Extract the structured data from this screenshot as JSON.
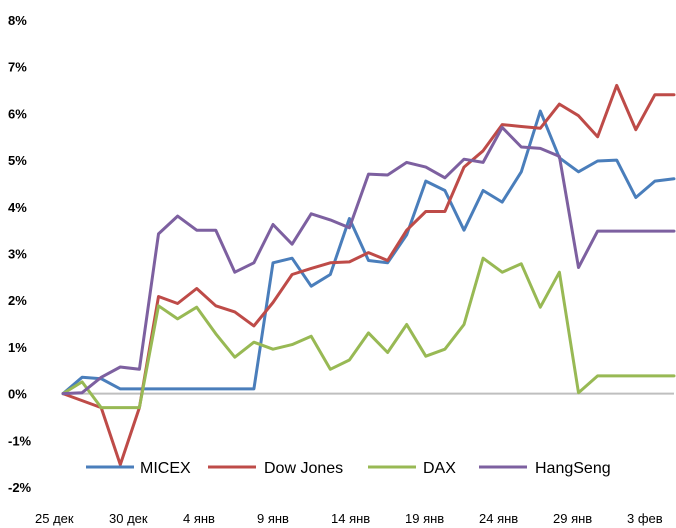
{
  "chart_data": {
    "type": "line",
    "title": "",
    "xlabel": "",
    "ylabel": "",
    "ylim": [
      -2,
      8
    ],
    "y_ticks": [
      "8%",
      "7%",
      "6%",
      "5%",
      "4%",
      "3%",
      "2%",
      "1%",
      "0%",
      "-1%",
      "-2%"
    ],
    "x_tick_labels": [
      "25 дек",
      "30 дек",
      "4 янв",
      "9 янв",
      "14 янв",
      "19 янв",
      "24 янв",
      "29 янв",
      "3 фев"
    ],
    "grid": false,
    "legend_position": "bottom",
    "x": [
      "25 дек",
      "26 дек",
      "27 дек",
      "28 дек",
      "29 дек",
      "1 янв",
      "2 янв",
      "3 янв",
      "4 янв",
      "5 янв",
      "8 янв",
      "9 янв",
      "10 янв",
      "11 янв",
      "12 янв",
      "15 янв",
      "16 янв",
      "17 янв",
      "18 янв",
      "19 янв",
      "22 янв",
      "23 янв",
      "24 янв",
      "25 янв",
      "26 янв",
      "29 янв",
      "30 янв",
      "31 янв",
      "1 фев",
      "2 фев",
      "5 фев",
      "6 фев",
      "7 фев"
    ],
    "series": [
      {
        "name": "MICEX",
        "color": "#4a7ebb",
        "values": [
          0.0,
          0.35,
          0.32,
          0.1,
          0.1,
          0.1,
          0.1,
          0.1,
          0.1,
          0.1,
          0.1,
          2.8,
          2.9,
          2.3,
          2.55,
          3.75,
          2.85,
          2.8,
          3.4,
          4.55,
          4.35,
          3.5,
          4.35,
          4.1,
          4.75,
          6.05,
          5.05,
          4.75,
          4.98,
          5.0,
          4.2,
          4.55,
          4.6
        ]
      },
      {
        "name": "Dow Jones",
        "color": "#be4b48",
        "values": [
          0.0,
          -0.15,
          -0.3,
          -1.52,
          -0.3,
          2.08,
          1.93,
          2.25,
          1.88,
          1.75,
          1.45,
          1.95,
          2.55,
          2.68,
          2.8,
          2.82,
          3.02,
          2.85,
          3.5,
          3.9,
          3.9,
          4.85,
          5.2,
          5.76,
          5.72,
          5.68,
          6.2,
          5.95,
          5.5,
          6.6,
          5.65,
          6.4,
          6.4
        ]
      },
      {
        "name": "DAX",
        "color": "#98b954",
        "values": [
          0.0,
          0.25,
          -0.3,
          -0.3,
          -0.3,
          1.88,
          1.6,
          1.85,
          1.28,
          0.78,
          1.1,
          0.95,
          1.05,
          1.23,
          0.52,
          0.72,
          1.3,
          0.88,
          1.48,
          0.8,
          0.95,
          1.48,
          2.9,
          2.6,
          2.78,
          1.85,
          2.6,
          0.02,
          0.38,
          0.38,
          0.38,
          0.38,
          0.38
        ]
      },
      {
        "name": "HangSeng",
        "color": "#7d60a0",
        "values": [
          0.0,
          0.02,
          0.35,
          0.57,
          0.52,
          3.42,
          3.8,
          3.5,
          3.5,
          2.6,
          2.8,
          3.62,
          3.2,
          3.85,
          3.72,
          3.55,
          4.7,
          4.68,
          4.95,
          4.85,
          4.62,
          5.02,
          4.95,
          5.7,
          5.28,
          5.25,
          5.08,
          2.7,
          3.48,
          3.48,
          3.48,
          3.48,
          3.48
        ]
      }
    ]
  }
}
